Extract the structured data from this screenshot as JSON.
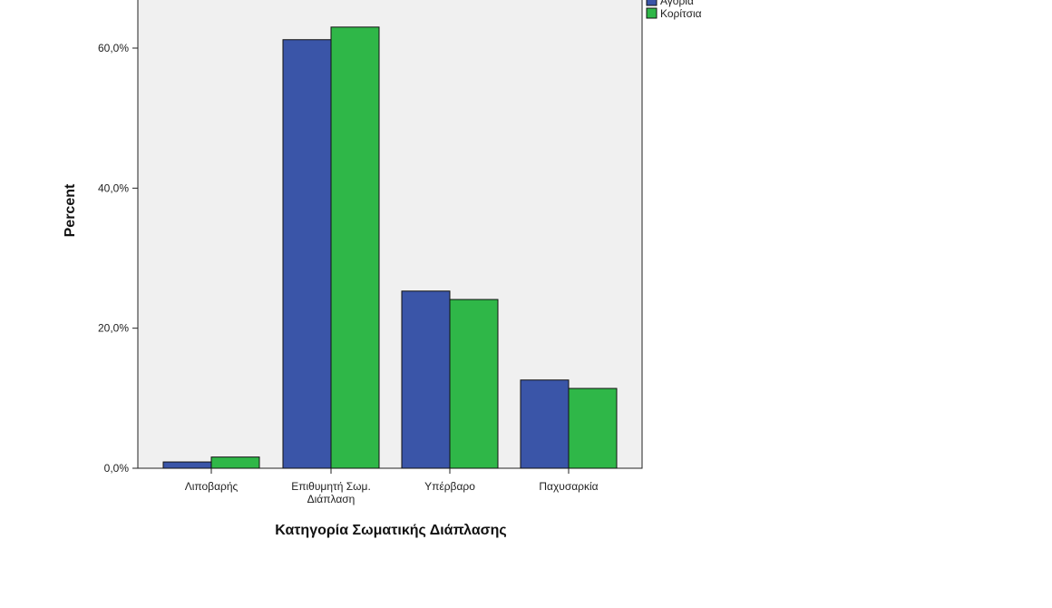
{
  "chart_data": {
    "type": "bar",
    "categories": [
      [
        "Λιποβαρής"
      ],
      [
        "Επιθυμητή Σωμ.",
        "Διάπλαση"
      ],
      [
        "Υπέρβαρο"
      ],
      [
        "Παχυσαρκία"
      ]
    ],
    "series": [
      {
        "name": "Αγόρια",
        "values": [
          0.9,
          61.2,
          25.3,
          12.6
        ],
        "color": "#3a55a8"
      },
      {
        "name": "Κορίτσια",
        "values": [
          1.6,
          63.0,
          24.1,
          11.4
        ],
        "color": "#2fb748"
      }
    ],
    "xlabel": "Κατηγορία Σωματικής Διάπλασης",
    "ylabel": "Percent",
    "y_ticks": [
      "0,0%",
      "20,0%",
      "40,0%",
      "60,0%"
    ],
    "y_tick_values": [
      0,
      20,
      40,
      60
    ],
    "legend_position": "top-right",
    "plot_background": "#f0f0f0",
    "grid": false
  }
}
